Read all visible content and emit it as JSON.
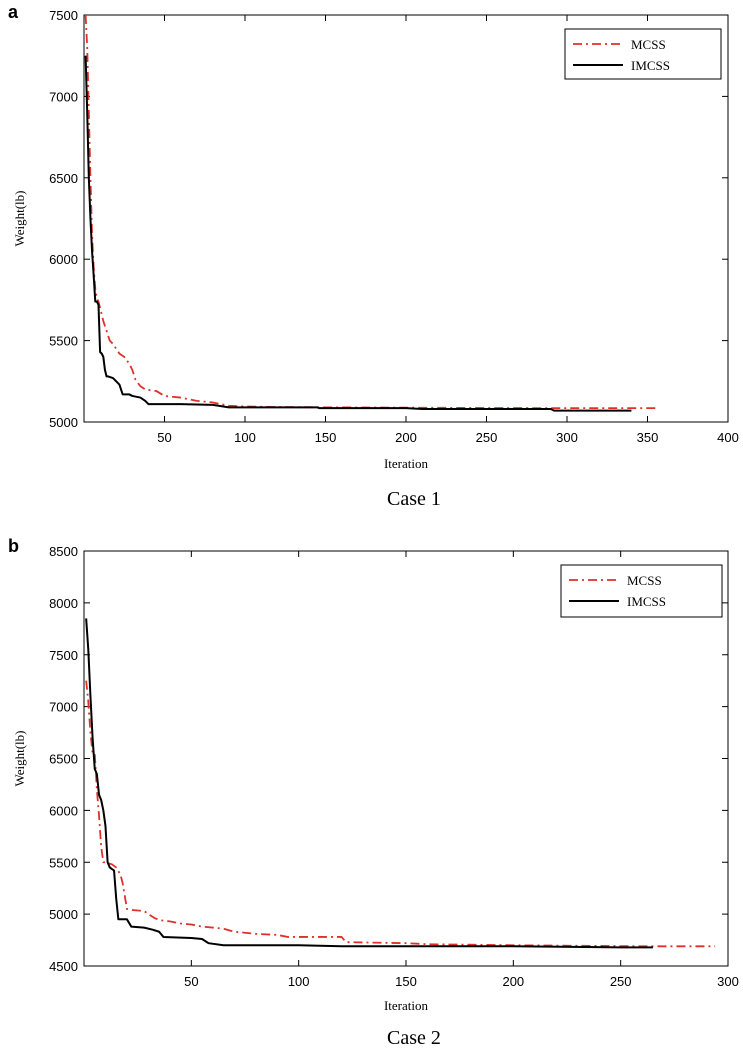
{
  "chart_data": [
    {
      "type": "line",
      "panel_label": "a",
      "caption": "Case 1",
      "xlabel": "Iteration",
      "ylabel": "Weight(lb)",
      "xlim": [
        0,
        400
      ],
      "ylim": [
        5000,
        7500
      ],
      "xticks": [
        "50",
        "100",
        "150",
        "200",
        "250",
        "300",
        "350",
        "400"
      ],
      "yticks": [
        "5000",
        "5500",
        "6000",
        "6500",
        "7000",
        "7500"
      ],
      "legend_position": "top-right",
      "series": [
        {
          "name": "MCSS",
          "color": "#e0302a",
          "style": "dash-dot",
          "points": [
            [
              1,
              7500
            ],
            [
              2,
              7300
            ],
            [
              3,
              6900
            ],
            [
              4,
              6500
            ],
            [
              5,
              6150
            ],
            [
              6,
              5950
            ],
            [
              7,
              5820
            ],
            [
              8,
              5760
            ],
            [
              9,
              5740
            ],
            [
              10,
              5700
            ],
            [
              12,
              5620
            ],
            [
              14,
              5560
            ],
            [
              16,
              5500
            ],
            [
              18,
              5480
            ],
            [
              20,
              5450
            ],
            [
              22,
              5420
            ],
            [
              25,
              5400
            ],
            [
              28,
              5360
            ],
            [
              30,
              5320
            ],
            [
              32,
              5260
            ],
            [
              35,
              5220
            ],
            [
              38,
              5200
            ],
            [
              45,
              5190
            ],
            [
              50,
              5160
            ],
            [
              60,
              5150
            ],
            [
              70,
              5130
            ],
            [
              80,
              5120
            ],
            [
              90,
              5100
            ],
            [
              100,
              5095
            ],
            [
              120,
              5092
            ],
            [
              150,
              5090
            ],
            [
              200,
              5088
            ],
            [
              250,
              5086
            ],
            [
              300,
              5085
            ],
            [
              355,
              5085
            ]
          ]
        },
        {
          "name": "IMCSS",
          "color": "#000000",
          "style": "solid",
          "points": [
            [
              1,
              7250
            ],
            [
              2,
              6900
            ],
            [
              3,
              6500
            ],
            [
              4,
              6250
            ],
            [
              5,
              6050
            ],
            [
              6,
              5900
            ],
            [
              7,
              5740
            ],
            [
              8,
              5740
            ],
            [
              9,
              5720
            ],
            [
              10,
              5430
            ],
            [
              11,
              5420
            ],
            [
              12,
              5400
            ],
            [
              13,
              5320
            ],
            [
              14,
              5280
            ],
            [
              15,
              5280
            ],
            [
              18,
              5270
            ],
            [
              20,
              5250
            ],
            [
              22,
              5230
            ],
            [
              24,
              5170
            ],
            [
              28,
              5170
            ],
            [
              30,
              5160
            ],
            [
              35,
              5150
            ],
            [
              38,
              5130
            ],
            [
              40,
              5110
            ],
            [
              45,
              5110
            ],
            [
              60,
              5110
            ],
            [
              80,
              5105
            ],
            [
              90,
              5090
            ],
            [
              100,
              5090
            ],
            [
              145,
              5090
            ],
            [
              146,
              5085
            ],
            [
              200,
              5085
            ],
            [
              210,
              5080
            ],
            [
              290,
              5080
            ],
            [
              292,
              5070
            ],
            [
              340,
              5070
            ]
          ]
        }
      ]
    },
    {
      "type": "line",
      "panel_label": "b",
      "caption": "Case 2",
      "xlabel": "Iteration",
      "ylabel": "Weight(lb)",
      "xlim": [
        0,
        300
      ],
      "ylim": [
        4500,
        8500
      ],
      "xticks": [
        "50",
        "100",
        "150",
        "200",
        "250",
        "300"
      ],
      "yticks": [
        "4500",
        "5000",
        "5500",
        "6000",
        "6500",
        "7000",
        "7500",
        "8000",
        "8500"
      ],
      "legend_position": "top-right",
      "series": [
        {
          "name": "MCSS",
          "color": "#e0302a",
          "style": "dash-dot",
          "points": [
            [
              1,
              7250
            ],
            [
              2,
              7050
            ],
            [
              3,
              6750
            ],
            [
              4,
              6550
            ],
            [
              5,
              6550
            ],
            [
              6,
              6200
            ],
            [
              7,
              5950
            ],
            [
              8,
              5650
            ],
            [
              9,
              5500
            ],
            [
              10,
              5500
            ],
            [
              13,
              5480
            ],
            [
              15,
              5450
            ],
            [
              17,
              5380
            ],
            [
              18,
              5300
            ],
            [
              20,
              5050
            ],
            [
              22,
              5040
            ],
            [
              28,
              5030
            ],
            [
              30,
              5000
            ],
            [
              33,
              4960
            ],
            [
              36,
              4940
            ],
            [
              40,
              4930
            ],
            [
              45,
              4910
            ],
            [
              50,
              4900
            ],
            [
              55,
              4880
            ],
            [
              65,
              4860
            ],
            [
              70,
              4830
            ],
            [
              80,
              4810
            ],
            [
              90,
              4800
            ],
            [
              95,
              4780
            ],
            [
              120,
              4780
            ],
            [
              122,
              4730
            ],
            [
              150,
              4720
            ],
            [
              160,
              4710
            ],
            [
              200,
              4700
            ],
            [
              260,
              4690
            ],
            [
              294,
              4690
            ]
          ]
        },
        {
          "name": "IMCSS",
          "color": "#000000",
          "style": "solid",
          "points": [
            [
              1,
              7850
            ],
            [
              2,
              7550
            ],
            [
              3,
              7100
            ],
            [
              4,
              6700
            ],
            [
              5,
              6400
            ],
            [
              6,
              6350
            ],
            [
              7,
              6150
            ],
            [
              8,
              6100
            ],
            [
              9,
              6000
            ],
            [
              10,
              5850
            ],
            [
              11,
              5500
            ],
            [
              12,
              5450
            ],
            [
              14,
              5420
            ],
            [
              15,
              5150
            ],
            [
              16,
              4950
            ],
            [
              20,
              4950
            ],
            [
              22,
              4880
            ],
            [
              28,
              4870
            ],
            [
              32,
              4850
            ],
            [
              35,
              4830
            ],
            [
              37,
              4780
            ],
            [
              50,
              4770
            ],
            [
              55,
              4760
            ],
            [
              58,
              4720
            ],
            [
              65,
              4700
            ],
            [
              100,
              4700
            ],
            [
              120,
              4690
            ],
            [
              200,
              4690
            ],
            [
              250,
              4680
            ],
            [
              265,
              4680
            ]
          ]
        }
      ]
    }
  ]
}
